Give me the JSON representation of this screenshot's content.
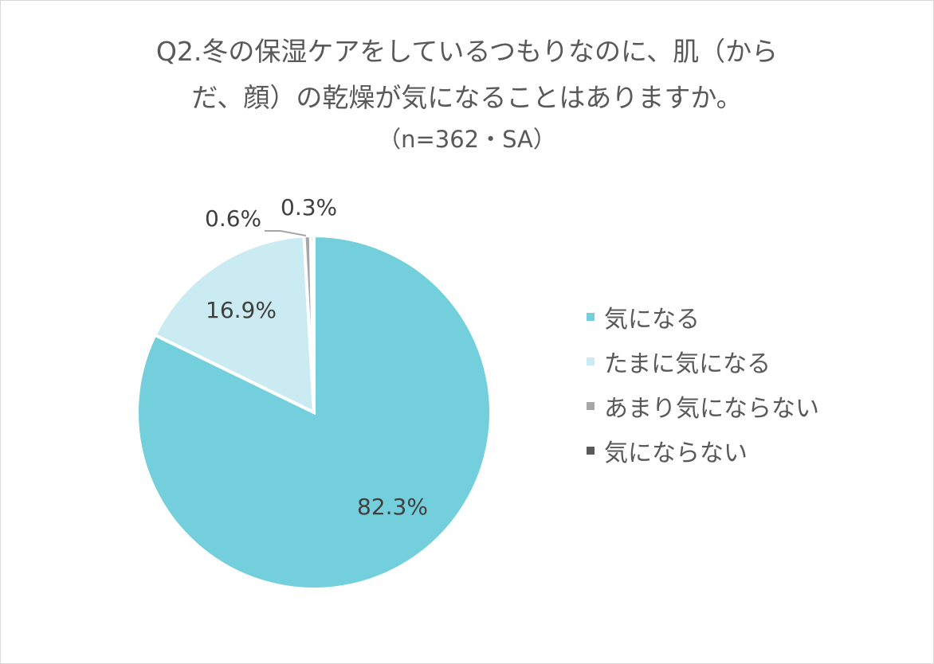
{
  "title_line1": "Q2.冬の保湿ケアをしているつもりなのに、肌（から",
  "title_line2": "だ、顔）の乾燥が気になることはありますか。",
  "title_line3": "（n=362・SA）",
  "labels": {
    "a": "82.3%",
    "b": "16.9%",
    "c": "0.6%",
    "d": "0.3%"
  },
  "legend": [
    {
      "label": "気になる",
      "color": "#74cfdc"
    },
    {
      "label": "たまに気になる",
      "color": "#c9ebf1"
    },
    {
      "label": "あまり気にならない",
      "color": "#a6a6a6"
    },
    {
      "label": "気にならない",
      "color": "#595959"
    }
  ],
  "chart_data": {
    "type": "pie",
    "title": "Q2.冬の保湿ケアをしているつもりなのに、肌（からだ、顔）の乾燥が気になることはありますか。（n=362・SA）",
    "categories": [
      "気になる",
      "たまに気になる",
      "あまり気にならない",
      "気にならない"
    ],
    "values": [
      82.3,
      16.9,
      0.6,
      0.3
    ],
    "colors": [
      "#74cfdc",
      "#c9ebf1",
      "#a6a6a6",
      "#595959"
    ],
    "legend_position": "right"
  }
}
